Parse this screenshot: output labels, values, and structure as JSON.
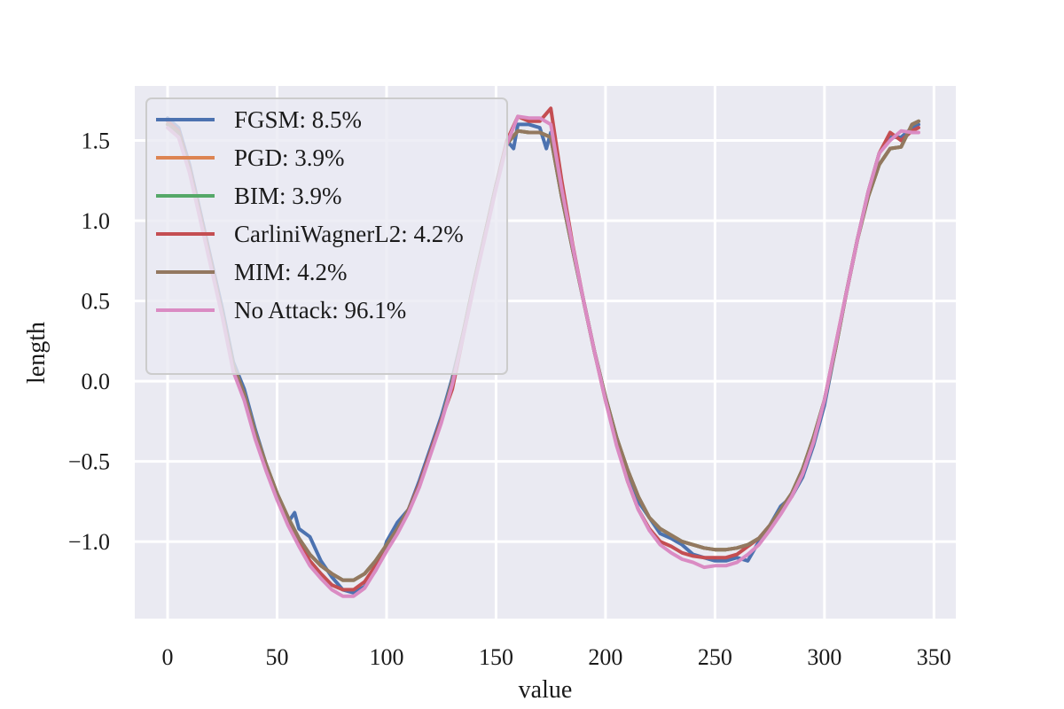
{
  "chart_data": {
    "type": "line",
    "xlabel": "value",
    "ylabel": "length",
    "xlim": [
      -15,
      360
    ],
    "ylim": [
      -1.48,
      1.84
    ],
    "xticks": [
      0,
      50,
      100,
      150,
      200,
      250,
      300,
      350
    ],
    "yticks": [
      -1.0,
      -0.5,
      0.0,
      0.5,
      1.0,
      1.5
    ],
    "ytick_labels": [
      "−1.0",
      "−0.5",
      "0.0",
      "0.5",
      "1.0",
      "1.5"
    ],
    "grid": true,
    "legend_position": "upper left",
    "series": [
      {
        "name": "FGSM: 8.5%",
        "color": "#4c72b0",
        "x": [
          0,
          5,
          10,
          15,
          20,
          25,
          30,
          35,
          40,
          45,
          50,
          55,
          58,
          60,
          65,
          70,
          75,
          80,
          85,
          90,
          95,
          98,
          100,
          105,
          110,
          115,
          120,
          125,
          130,
          135,
          140,
          145,
          150,
          155,
          158,
          160,
          165,
          170,
          173,
          175,
          180,
          185,
          190,
          195,
          200,
          205,
          210,
          215,
          220,
          225,
          230,
          235,
          240,
          245,
          250,
          255,
          260,
          265,
          270,
          275,
          280,
          285,
          290,
          295,
          300,
          305,
          310,
          315,
          320,
          325,
          330,
          335,
          340,
          343
        ],
        "y": [
          1.64,
          1.58,
          1.35,
          1.05,
          0.75,
          0.45,
          0.12,
          -0.05,
          -0.3,
          -0.52,
          -0.7,
          -0.88,
          -0.82,
          -0.92,
          -0.97,
          -1.12,
          -1.22,
          -1.3,
          -1.32,
          -1.28,
          -1.18,
          -1.1,
          -1.0,
          -0.88,
          -0.8,
          -0.62,
          -0.42,
          -0.22,
          0.02,
          0.3,
          0.62,
          0.92,
          1.22,
          1.5,
          1.45,
          1.6,
          1.6,
          1.58,
          1.45,
          1.55,
          1.15,
          0.82,
          0.5,
          0.18,
          -0.1,
          -0.35,
          -0.6,
          -0.75,
          -0.85,
          -0.95,
          -0.98,
          -1.02,
          -1.08,
          -1.1,
          -1.12,
          -1.12,
          -1.1,
          -1.12,
          -1.0,
          -0.9,
          -0.78,
          -0.72,
          -0.6,
          -0.4,
          -0.15,
          0.2,
          0.55,
          0.88,
          1.18,
          1.42,
          1.52,
          1.52,
          1.58,
          1.6
        ]
      },
      {
        "name": "PGD: 3.9%",
        "color": "#dd8452",
        "x": [
          0,
          5,
          10,
          15,
          20,
          25,
          30,
          35,
          40,
          45,
          50,
          55,
          60,
          65,
          70,
          75,
          80,
          85,
          90,
          95,
          100,
          105,
          110,
          115,
          120,
          125,
          130,
          135,
          140,
          145,
          150,
          155,
          160,
          165,
          170,
          175,
          180,
          185,
          190,
          195,
          200,
          205,
          210,
          215,
          220,
          225,
          230,
          235,
          240,
          245,
          250,
          255,
          260,
          265,
          270,
          275,
          280,
          285,
          290,
          295,
          300,
          305,
          310,
          315,
          320,
          325,
          330,
          335,
          340,
          343
        ],
        "y": [
          1.6,
          1.55,
          1.32,
          1.02,
          0.72,
          0.42,
          0.1,
          -0.08,
          -0.32,
          -0.52,
          -0.7,
          -0.85,
          -0.98,
          -1.08,
          -1.15,
          -1.2,
          -1.24,
          -1.24,
          -1.2,
          -1.12,
          -1.02,
          -0.92,
          -0.8,
          -0.65,
          -0.45,
          -0.25,
          0.0,
          0.3,
          0.62,
          0.92,
          1.22,
          1.48,
          1.56,
          1.55,
          1.55,
          1.52,
          1.15,
          0.82,
          0.5,
          0.18,
          -0.1,
          -0.35,
          -0.55,
          -0.72,
          -0.85,
          -0.92,
          -0.96,
          -1.0,
          -1.02,
          -1.04,
          -1.05,
          -1.05,
          -1.04,
          -1.02,
          -0.98,
          -0.9,
          -0.8,
          -0.7,
          -0.55,
          -0.35,
          -0.12,
          0.2,
          0.55,
          0.88,
          1.15,
          1.35,
          1.45,
          1.46,
          1.6,
          1.62
        ]
      },
      {
        "name": "BIM: 3.9%",
        "color": "#55a868",
        "x": [
          0,
          5,
          10,
          15,
          20,
          25,
          30,
          35,
          40,
          45,
          50,
          55,
          60,
          65,
          70,
          75,
          80,
          85,
          90,
          95,
          100,
          105,
          110,
          115,
          120,
          125,
          130,
          135,
          140,
          145,
          150,
          155,
          160,
          165,
          170,
          175,
          180,
          185,
          190,
          195,
          200,
          205,
          210,
          215,
          220,
          225,
          230,
          235,
          240,
          245,
          250,
          255,
          260,
          265,
          270,
          275,
          280,
          285,
          290,
          295,
          300,
          305,
          310,
          315,
          320,
          325,
          330,
          335,
          340,
          343
        ],
        "y": [
          1.6,
          1.55,
          1.32,
          1.02,
          0.72,
          0.42,
          0.1,
          -0.08,
          -0.32,
          -0.52,
          -0.7,
          -0.85,
          -0.98,
          -1.08,
          -1.15,
          -1.2,
          -1.24,
          -1.24,
          -1.2,
          -1.12,
          -1.02,
          -0.92,
          -0.8,
          -0.65,
          -0.45,
          -0.25,
          0.0,
          0.3,
          0.62,
          0.92,
          1.22,
          1.48,
          1.56,
          1.55,
          1.55,
          1.52,
          1.15,
          0.82,
          0.5,
          0.18,
          -0.1,
          -0.35,
          -0.55,
          -0.72,
          -0.85,
          -0.92,
          -0.96,
          -1.0,
          -1.02,
          -1.04,
          -1.05,
          -1.05,
          -1.04,
          -1.02,
          -0.98,
          -0.9,
          -0.8,
          -0.7,
          -0.55,
          -0.35,
          -0.12,
          0.2,
          0.55,
          0.88,
          1.15,
          1.35,
          1.45,
          1.46,
          1.6,
          1.62
        ]
      },
      {
        "name": "CarliniWagnerL2: 4.2%",
        "color": "#c44e52",
        "x": [
          0,
          5,
          10,
          15,
          20,
          25,
          30,
          35,
          40,
          45,
          50,
          55,
          60,
          65,
          70,
          75,
          80,
          85,
          90,
          95,
          100,
          105,
          110,
          115,
          120,
          125,
          130,
          135,
          140,
          145,
          150,
          155,
          160,
          165,
          170,
          175,
          180,
          185,
          190,
          195,
          200,
          205,
          210,
          215,
          220,
          225,
          230,
          235,
          240,
          245,
          250,
          255,
          260,
          265,
          270,
          275,
          280,
          285,
          290,
          295,
          300,
          305,
          310,
          315,
          320,
          325,
          330,
          335,
          340,
          343
        ],
        "y": [
          1.62,
          1.56,
          1.33,
          1.03,
          0.73,
          0.42,
          0.08,
          -0.1,
          -0.34,
          -0.54,
          -0.72,
          -0.88,
          -1.0,
          -1.12,
          -1.2,
          -1.27,
          -1.3,
          -1.3,
          -1.25,
          -1.15,
          -1.04,
          -0.93,
          -0.8,
          -0.64,
          -0.44,
          -0.24,
          -0.05,
          0.28,
          0.6,
          0.92,
          1.22,
          1.5,
          1.65,
          1.62,
          1.62,
          1.7,
          1.25,
          0.85,
          0.5,
          0.18,
          -0.12,
          -0.38,
          -0.62,
          -0.8,
          -0.92,
          -1.0,
          -1.03,
          -1.07,
          -1.09,
          -1.1,
          -1.1,
          -1.1,
          -1.08,
          -1.03,
          -0.98,
          -0.9,
          -0.82,
          -0.72,
          -0.58,
          -0.38,
          -0.12,
          0.22,
          0.55,
          0.88,
          1.18,
          1.42,
          1.55,
          1.5,
          1.56,
          1.58
        ]
      },
      {
        "name": "MIM: 4.2%",
        "color": "#937860",
        "x": [
          0,
          5,
          10,
          15,
          20,
          25,
          30,
          35,
          40,
          45,
          50,
          55,
          60,
          65,
          70,
          75,
          80,
          85,
          90,
          95,
          100,
          105,
          110,
          115,
          120,
          125,
          130,
          135,
          140,
          145,
          150,
          155,
          160,
          165,
          170,
          175,
          180,
          185,
          190,
          195,
          200,
          205,
          210,
          215,
          220,
          225,
          230,
          235,
          240,
          245,
          250,
          255,
          260,
          265,
          270,
          275,
          280,
          285,
          290,
          295,
          300,
          305,
          310,
          315,
          320,
          325,
          330,
          335,
          340,
          343
        ],
        "y": [
          1.6,
          1.55,
          1.32,
          1.02,
          0.72,
          0.42,
          0.1,
          -0.08,
          -0.32,
          -0.52,
          -0.7,
          -0.85,
          -0.98,
          -1.08,
          -1.15,
          -1.2,
          -1.24,
          -1.24,
          -1.2,
          -1.12,
          -1.02,
          -0.92,
          -0.8,
          -0.65,
          -0.45,
          -0.25,
          0.0,
          0.3,
          0.62,
          0.92,
          1.22,
          1.48,
          1.56,
          1.55,
          1.55,
          1.52,
          1.15,
          0.82,
          0.5,
          0.18,
          -0.1,
          -0.35,
          -0.55,
          -0.72,
          -0.85,
          -0.92,
          -0.96,
          -1.0,
          -1.02,
          -1.04,
          -1.05,
          -1.05,
          -1.04,
          -1.02,
          -0.98,
          -0.9,
          -0.8,
          -0.7,
          -0.55,
          -0.35,
          -0.12,
          0.2,
          0.55,
          0.88,
          1.15,
          1.35,
          1.45,
          1.46,
          1.6,
          1.62
        ]
      },
      {
        "name": "No Attack: 96.1%",
        "color": "#da8bc3",
        "x": [
          0,
          5,
          10,
          15,
          20,
          25,
          30,
          35,
          40,
          45,
          50,
          55,
          60,
          65,
          70,
          75,
          80,
          85,
          90,
          95,
          100,
          105,
          110,
          115,
          120,
          125,
          130,
          135,
          140,
          145,
          150,
          155,
          160,
          165,
          170,
          175,
          180,
          185,
          190,
          195,
          200,
          205,
          210,
          215,
          220,
          225,
          230,
          235,
          240,
          245,
          250,
          255,
          260,
          265,
          270,
          275,
          280,
          285,
          290,
          295,
          300,
          305,
          310,
          315,
          320,
          325,
          330,
          335,
          340,
          343
        ],
        "y": [
          1.58,
          1.52,
          1.3,
          1.0,
          0.7,
          0.4,
          0.06,
          -0.12,
          -0.36,
          -0.56,
          -0.74,
          -0.9,
          -1.03,
          -1.15,
          -1.23,
          -1.3,
          -1.34,
          -1.34,
          -1.29,
          -1.18,
          -1.06,
          -0.95,
          -0.82,
          -0.66,
          -0.46,
          -0.26,
          -0.02,
          0.28,
          0.6,
          0.9,
          1.2,
          1.48,
          1.65,
          1.64,
          1.64,
          1.6,
          1.2,
          0.84,
          0.5,
          0.18,
          -0.12,
          -0.4,
          -0.62,
          -0.8,
          -0.93,
          -1.02,
          -1.07,
          -1.11,
          -1.13,
          -1.16,
          -1.15,
          -1.15,
          -1.13,
          -1.08,
          -1.02,
          -0.93,
          -0.83,
          -0.72,
          -0.58,
          -0.38,
          -0.12,
          0.22,
          0.55,
          0.88,
          1.18,
          1.42,
          1.5,
          1.56,
          1.55,
          1.55
        ]
      }
    ]
  }
}
